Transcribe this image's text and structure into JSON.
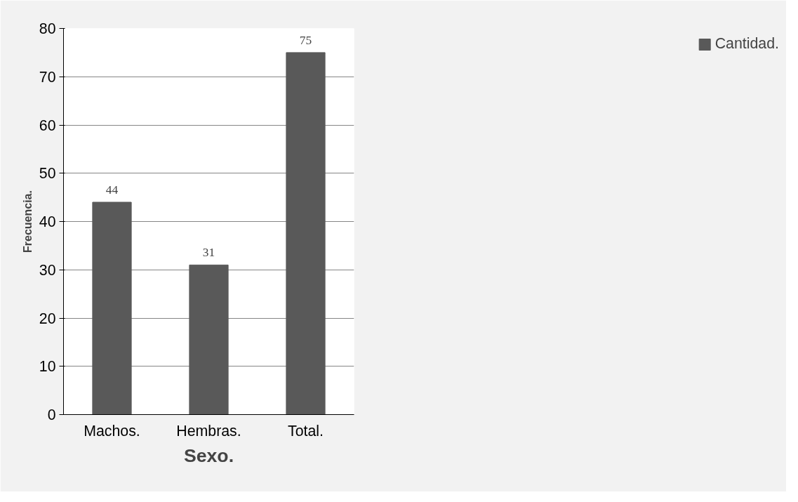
{
  "chart_data": {
    "type": "bar",
    "xlabel": "Sexo.",
    "ylabel": "Frecuencia.",
    "categories": [
      "Machos.",
      "Hembras.",
      "Total."
    ],
    "series": [
      {
        "name": "Cantidad.",
        "color": "#595959",
        "values": [
          44,
          31,
          75
        ]
      }
    ],
    "ylim": [
      0,
      80
    ],
    "yticks": [
      0,
      10,
      20,
      30,
      40,
      50,
      60,
      70,
      80
    ],
    "grid": "y",
    "legend": "right",
    "data_labels": true
  }
}
